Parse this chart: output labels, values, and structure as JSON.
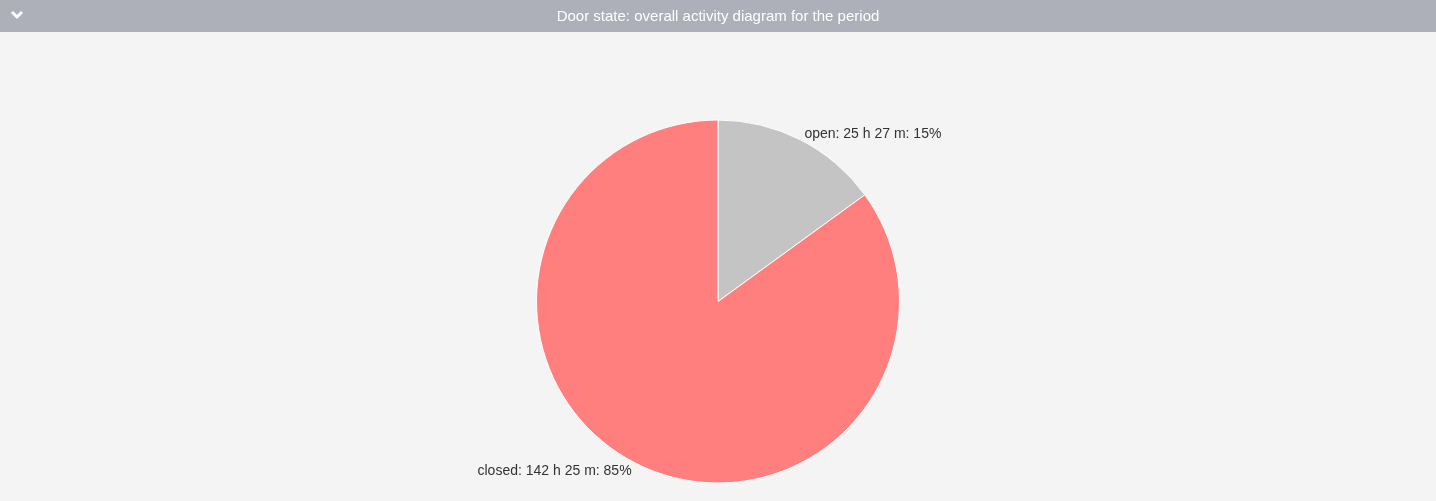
{
  "chart_data": {
    "type": "pie",
    "title": "Door state: overall activity diagram for the period",
    "categories": [
      "open",
      "closed"
    ],
    "values": [
      15,
      85
    ],
    "colors": [
      "#c4c4c4",
      "#ff7f7f"
    ],
    "value_labels": [
      "25 h 27 m: 15%",
      "142 h 25 m: 85%"
    ],
    "legend": false
  }
}
